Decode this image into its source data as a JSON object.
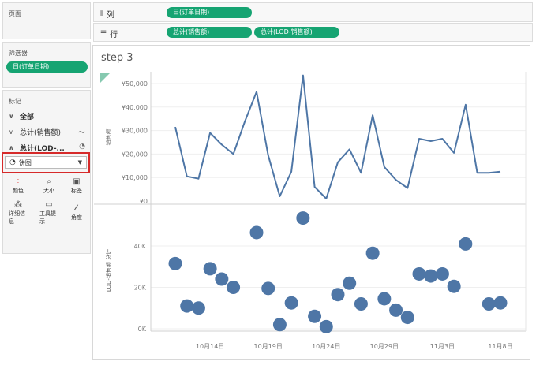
{
  "pages_panel": {
    "title": "页面"
  },
  "filters_panel": {
    "title": "筛选器",
    "pill": "日(订单日期)"
  },
  "marks_panel": {
    "title": "标记",
    "all_label": "全部",
    "sum_sales_label": "总计(销售额)",
    "sum_lod_label": "总计(LOD-...",
    "mark_type": "饼图",
    "buttons": [
      {
        "label": "颜色",
        "icon": "color-dots-icon"
      },
      {
        "label": "大小",
        "icon": "size-icon"
      },
      {
        "label": "标签",
        "icon": "label-icon"
      },
      {
        "label": "详细信息",
        "icon": "detail-icon"
      },
      {
        "label": "工具提示",
        "icon": "tooltip-icon"
      },
      {
        "label": "角度",
        "icon": "angle-icon"
      }
    ]
  },
  "shelves": {
    "columns_label": "列",
    "rows_label": "行",
    "columns_pill": "日(订单日期)",
    "rows_pills": [
      "总计(销售额)",
      "总计(LOD-销售额)"
    ]
  },
  "colors": {
    "pill": "#16a472",
    "series": "#4e76a6",
    "highlight": "#d62a2a"
  },
  "sheet_title": "step 3",
  "chart_data": [
    {
      "type": "line",
      "ylabel": "销售额",
      "ylim": [
        0,
        55000
      ],
      "yticks": [
        "¥50,000",
        "¥40,000",
        "¥30,000",
        "¥20,000",
        "¥10,000",
        "¥0"
      ],
      "ytick_values": [
        50000,
        40000,
        30000,
        20000,
        10000,
        0
      ],
      "x": [
        11,
        12,
        13,
        14,
        15,
        16,
        17,
        18,
        19,
        20,
        21,
        22,
        23,
        24,
        25,
        26,
        27,
        28,
        29,
        30,
        31,
        32,
        33,
        34,
        35,
        36,
        37,
        38,
        39
      ],
      "values": [
        31500,
        10500,
        9500,
        29000,
        24000,
        20000,
        34000,
        46500,
        19500,
        2000,
        12500,
        53500,
        6000,
        1000,
        16500,
        22000,
        12000,
        36500,
        14500,
        9000,
        5500,
        26500,
        25500,
        26500,
        20500,
        41000,
        12000,
        12000,
        12500
      ]
    },
    {
      "type": "scatter",
      "ylabel": "LOD-销售额 总计",
      "ylim": [
        0,
        60000
      ],
      "yticks": [
        "40K",
        "20K",
        "0K"
      ],
      "ytick_values": [
        40000,
        20000,
        0
      ],
      "xticks": [
        "10月14日",
        "10月19日",
        "10月24日",
        "10月29日",
        "11月3日",
        "11月8日"
      ],
      "xtick_values": [
        14,
        19,
        24,
        29,
        34,
        39
      ],
      "x": [
        11,
        12,
        13,
        14,
        15,
        16,
        18,
        19,
        20,
        21,
        22,
        23,
        24,
        25,
        26,
        27,
        28,
        29,
        30,
        31,
        32,
        33,
        34,
        35,
        36,
        38,
        39
      ],
      "values": [
        31500,
        11000,
        10000,
        29000,
        24000,
        20000,
        46500,
        19500,
        2000,
        12500,
        53500,
        6000,
        1000,
        16500,
        22000,
        12000,
        36500,
        14500,
        9000,
        5500,
        26500,
        25500,
        26500,
        20500,
        41000,
        12000,
        12500
      ]
    }
  ]
}
